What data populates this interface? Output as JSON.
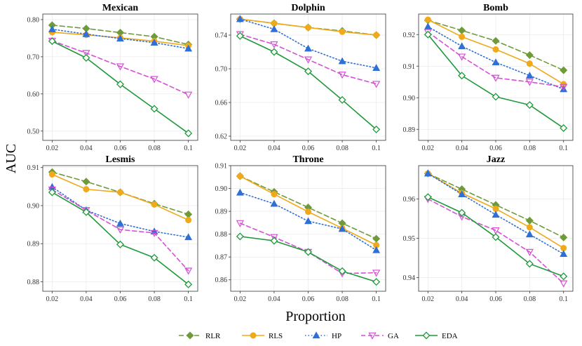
{
  "chart_data": {
    "type": "line",
    "ylabel": "AUC",
    "xlabel": "Proportion",
    "x": [
      0.02,
      0.04,
      0.06,
      0.08,
      0.1
    ],
    "x_tick_labels": [
      "0.02",
      "0.04",
      "0.06",
      "0.08",
      "0.1"
    ],
    "series_styles": [
      {
        "name": "RLR",
        "color": "#6f9a3a",
        "dash": "7,4",
        "marker": "diamond-filled"
      },
      {
        "name": "RLS",
        "color": "#f0a91a",
        "dash": "",
        "marker": "circle-filled"
      },
      {
        "name": "HP",
        "color": "#2f6fd6",
        "dash": "1.5,3",
        "marker": "triangle-filled"
      },
      {
        "name": "GA",
        "color": "#d64fd6",
        "dash": "6,4",
        "marker": "triangle-down-open"
      },
      {
        "name": "EDA",
        "color": "#1e9a3a",
        "dash": "",
        "marker": "diamond-open"
      }
    ],
    "panels": [
      {
        "title": "Mexican",
        "ylim": [
          0.475,
          0.815
        ],
        "yticks": [
          0.5,
          0.6,
          0.7,
          0.8
        ],
        "ytick_labels": [
          "0.50",
          "0.60",
          "0.70",
          "0.80"
        ],
        "series": [
          {
            "name": "RLR",
            "values": [
              0.785,
              0.776,
              0.765,
              0.754,
              0.733
            ]
          },
          {
            "name": "RLS",
            "values": [
              0.766,
              0.759,
              0.751,
              0.742,
              0.73
            ]
          },
          {
            "name": "HP",
            "values": [
              0.774,
              0.761,
              0.749,
              0.738,
              0.722
            ]
          },
          {
            "name": "GA",
            "values": [
              0.743,
              0.71,
              0.674,
              0.64,
              0.598
            ]
          },
          {
            "name": "EDA",
            "values": [
              0.742,
              0.697,
              0.626,
              0.56,
              0.494
            ]
          }
        ]
      },
      {
        "title": "Dolphin",
        "ylim": [
          0.615,
          0.765
        ],
        "yticks": [
          0.62,
          0.66,
          0.7,
          0.74
        ],
        "ytick_labels": [
          "0.62",
          "0.66",
          "0.70",
          "0.74"
        ],
        "series": [
          {
            "name": "RLR",
            "values": [
              0.759,
              0.754,
              0.749,
              0.745,
              0.74
            ]
          },
          {
            "name": "RLS",
            "values": [
              0.759,
              0.754,
              0.749,
              0.744,
              0.74
            ]
          },
          {
            "name": "HP",
            "values": [
              0.759,
              0.747,
              0.724,
              0.709,
              0.701
            ]
          },
          {
            "name": "GA",
            "values": [
              0.741,
              0.729,
              0.711,
              0.693,
              0.682
            ]
          },
          {
            "name": "EDA",
            "values": [
              0.739,
              0.72,
              0.697,
              0.663,
              0.628
            ]
          }
        ]
      },
      {
        "title": "Bomb",
        "ylim": [
          0.8865,
          0.9265
        ],
        "yticks": [
          0.89,
          0.9,
          0.91,
          0.92
        ],
        "ytick_labels": [
          "0.89",
          "0.90",
          "0.91",
          "0.92"
        ],
        "series": [
          {
            "name": "RLR",
            "values": [
              0.9245,
              0.9213,
              0.918,
              0.9135,
              0.9087
            ]
          },
          {
            "name": "RLS",
            "values": [
              0.9247,
              0.9193,
              0.9153,
              0.9108,
              0.9043
            ]
          },
          {
            "name": "HP",
            "values": [
              0.9225,
              0.9163,
              0.9112,
              0.907,
              0.9027
            ]
          },
          {
            "name": "GA",
            "values": [
              0.9208,
              0.913,
              0.9063,
              0.905,
              0.9034
            ]
          },
          {
            "name": "EDA",
            "values": [
              0.92,
              0.907,
              0.9003,
              0.8977,
              0.8904
            ]
          }
        ]
      },
      {
        "title": "Lesmis",
        "ylim": [
          0.8775,
          0.9105
        ],
        "yticks": [
          0.88,
          0.89,
          0.9,
          0.91
        ],
        "ytick_labels": [
          "0.88",
          "0.89",
          "0.90",
          "0.91"
        ],
        "series": [
          {
            "name": "RLR",
            "values": [
              0.9088,
              0.9063,
              0.9035,
              0.9005,
              0.8977
            ]
          },
          {
            "name": "RLS",
            "values": [
              0.9082,
              0.9043,
              0.9035,
              0.9003,
              0.8962
            ]
          },
          {
            "name": "HP",
            "values": [
              0.9049,
              0.8988,
              0.8953,
              0.8932,
              0.8917
            ]
          },
          {
            "name": "GA",
            "values": [
              0.9042,
              0.8988,
              0.8937,
              0.8928,
              0.8829
            ]
          },
          {
            "name": "EDA",
            "values": [
              0.9035,
              0.8983,
              0.8898,
              0.8863,
              0.8793
            ]
          }
        ]
      },
      {
        "title": "Throne",
        "ylim": [
          0.855,
          0.91
        ],
        "yticks": [
          0.86,
          0.87,
          0.88,
          0.89,
          0.9,
          0.91
        ],
        "ytick_labels": [
          "0.86",
          "0.87",
          "0.88",
          "0.89",
          "0.90",
          "0.91"
        ],
        "series": [
          {
            "name": "RLR",
            "values": [
              0.9054,
              0.8985,
              0.8917,
              0.8848,
              0.878
            ]
          },
          {
            "name": "RLS",
            "values": [
              0.9054,
              0.8975,
              0.8898,
              0.8826,
              0.8752
            ]
          },
          {
            "name": "HP",
            "values": [
              0.8982,
              0.8933,
              0.8857,
              0.8823,
              0.873
            ]
          },
          {
            "name": "GA",
            "values": [
              0.8848,
              0.8787,
              0.8722,
              0.8628,
              0.8631
            ]
          },
          {
            "name": "EDA",
            "values": [
              0.879,
              0.8771,
              0.8722,
              0.8638,
              0.8591
            ]
          }
        ]
      },
      {
        "title": "Jazz",
        "ylim": [
          0.9365,
          0.9685
        ],
        "yticks": [
          0.94,
          0.95,
          0.96
        ],
        "ytick_labels": [
          "0.94",
          "0.95",
          "0.96"
        ],
        "series": [
          {
            "name": "RLR",
            "values": [
              0.9665,
              0.9625,
              0.9585,
              0.9545,
              0.9502
            ]
          },
          {
            "name": "RLS",
            "values": [
              0.9665,
              0.9615,
              0.9575,
              0.9528,
              0.9475
            ]
          },
          {
            "name": "HP",
            "values": [
              0.9665,
              0.9612,
              0.956,
              0.951,
              0.946
            ]
          },
          {
            "name": "GA",
            "values": [
              0.96,
              0.9555,
              0.952,
              0.9465,
              0.9385
            ]
          },
          {
            "name": "EDA",
            "values": [
              0.9605,
              0.9565,
              0.9503,
              0.9435,
              0.9403
            ]
          }
        ]
      }
    ]
  }
}
